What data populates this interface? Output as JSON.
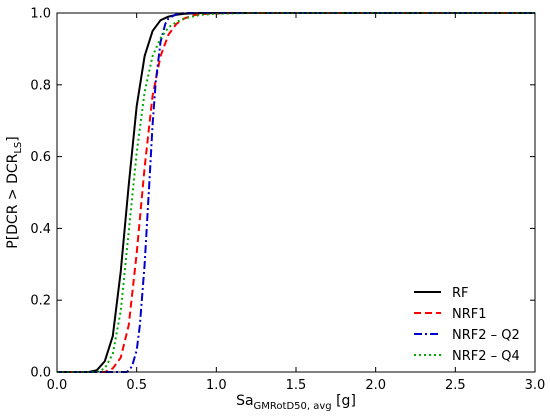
{
  "chart_data": {
    "type": "line",
    "xlim": [
      0.0,
      3.0
    ],
    "ylim": [
      0.0,
      1.0
    ],
    "x_ticks": [
      0.0,
      0.5,
      1.0,
      1.5,
      2.0,
      2.5,
      3.0
    ],
    "x_tick_labels": [
      "0.0",
      "0.5",
      "1.0",
      "1.5",
      "2.0",
      "2.5",
      "3.0"
    ],
    "y_ticks": [
      0.0,
      0.2,
      0.4,
      0.6,
      0.8,
      1.0
    ],
    "y_tick_labels": [
      "0.0",
      "0.2",
      "0.4",
      "0.6",
      "0.8",
      "1.0"
    ],
    "xlabel": {
      "main": "Sa",
      "sub": "GMRotD50, avg",
      "unit": " [g]"
    },
    "ylabel": {
      "prefix": "P[DCR > DCR",
      "sub": "LS",
      "suffix": "]"
    },
    "grid": false,
    "legend_position": "bottom-right",
    "series": [
      {
        "name": "RF",
        "color": "#000000",
        "dash": "solid",
        "x": [
          0.0,
          0.2,
          0.25,
          0.3,
          0.35,
          0.4,
          0.45,
          0.5,
          0.55,
          0.6,
          0.65,
          0.7,
          0.75,
          0.8,
          0.9,
          1.0,
          1.2,
          1.5,
          2.0,
          3.0
        ],
        "y": [
          0.0,
          0.0,
          0.005,
          0.03,
          0.1,
          0.28,
          0.52,
          0.74,
          0.88,
          0.95,
          0.98,
          0.99,
          0.995,
          0.998,
          1.0,
          1.0,
          1.0,
          1.0,
          1.0,
          1.0
        ]
      },
      {
        "name": "NRF1",
        "color": "#ff0000",
        "dash": "dashed",
        "x": [
          0.0,
          0.3,
          0.35,
          0.4,
          0.45,
          0.5,
          0.55,
          0.6,
          0.65,
          0.7,
          0.75,
          0.8,
          0.85,
          0.9,
          1.0,
          1.1,
          1.2,
          1.5,
          2.0,
          3.0
        ],
        "y": [
          0.0,
          0.0,
          0.01,
          0.04,
          0.13,
          0.33,
          0.57,
          0.77,
          0.88,
          0.94,
          0.97,
          0.985,
          0.993,
          0.997,
          0.999,
          1.0,
          1.0,
          1.0,
          1.0,
          1.0
        ]
      },
      {
        "name": "NRF2 – Q2",
        "color": "#0000cd",
        "dash": "dashdot",
        "x": [
          0.0,
          0.44,
          0.47,
          0.5,
          0.52,
          0.55,
          0.58,
          0.6,
          0.62,
          0.65,
          0.68,
          0.7,
          0.75,
          0.8,
          0.9,
          1.0,
          1.5,
          2.0,
          3.0
        ],
        "y": [
          0.0,
          0.0,
          0.015,
          0.06,
          0.13,
          0.3,
          0.53,
          0.69,
          0.81,
          0.92,
          0.97,
          0.985,
          0.997,
          1.0,
          1.0,
          1.0,
          1.0,
          1.0,
          1.0
        ]
      },
      {
        "name": "NRF2 – Q4",
        "color": "#00aa00",
        "dash": "dotted",
        "x": [
          0.0,
          0.25,
          0.3,
          0.35,
          0.4,
          0.45,
          0.5,
          0.55,
          0.6,
          0.65,
          0.7,
          0.75,
          0.8,
          0.9,
          1.0,
          1.1,
          1.2,
          1.5,
          2.0,
          3.0
        ],
        "y": [
          0.0,
          0.0,
          0.01,
          0.05,
          0.17,
          0.39,
          0.61,
          0.78,
          0.88,
          0.93,
          0.96,
          0.975,
          0.985,
          0.995,
          0.998,
          0.999,
          1.0,
          1.0,
          1.0,
          1.0
        ]
      }
    ]
  }
}
